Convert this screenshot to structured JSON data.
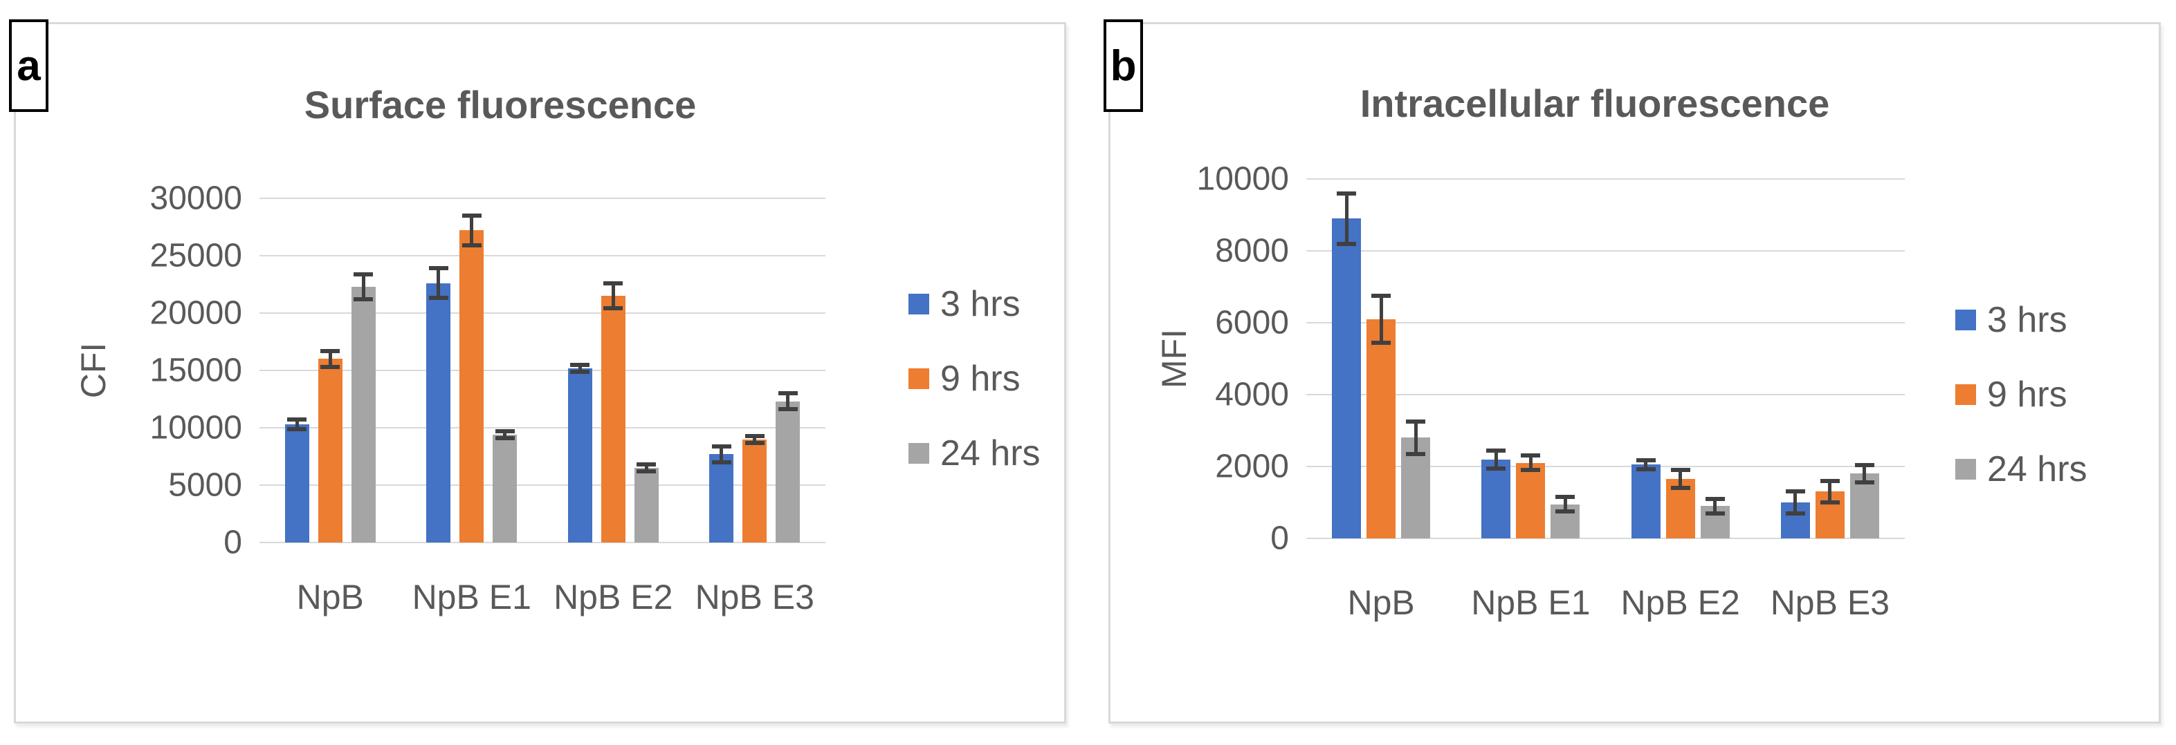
{
  "panels": [
    {
      "label": "a"
    },
    {
      "label": "b"
    }
  ],
  "colors": {
    "series_blue": "#4472C4",
    "series_orange": "#ED7D31",
    "series_gray": "#A5A5A5",
    "error_bar": "#404040",
    "gridline": "#D9D9D9",
    "text": "#595959",
    "panel_border": "#D9D9D9",
    "panel_label_border": "#000000"
  },
  "chart_data": [
    {
      "type": "bar",
      "panel": "a",
      "title": "Surface fluorescence",
      "ylabel": "CFI",
      "xlabel": "",
      "categories": [
        "NpB",
        "NpB E1",
        "NpB E2",
        "NpB E3"
      ],
      "series": [
        {
          "name": "3 hrs",
          "color": "#4472C4",
          "values": [
            10300,
            22600,
            15200,
            7700
          ],
          "errors": [
            400,
            1300,
            300,
            700
          ]
        },
        {
          "name": "9 hrs",
          "color": "#ED7D31",
          "values": [
            16000,
            27200,
            21500,
            9000
          ],
          "errors": [
            700,
            1300,
            1100,
            300
          ]
        },
        {
          "name": "24 hrs",
          "color": "#A5A5A5",
          "values": [
            22300,
            9400,
            6500,
            12300
          ],
          "errors": [
            1100,
            300,
            300,
            700
          ]
        }
      ],
      "ylim": [
        0,
        30000
      ],
      "ytick_step": 5000,
      "yticks": [
        0,
        5000,
        10000,
        15000,
        20000,
        25000,
        30000
      ],
      "grid": true,
      "error_bars": true,
      "legend_position": "right"
    },
    {
      "type": "bar",
      "panel": "b",
      "title": "Intracellular fluorescence",
      "ylabel": "MFI",
      "xlabel": "",
      "categories": [
        "NpB",
        "NpB E1",
        "NpB E2",
        "NpB E3"
      ],
      "series": [
        {
          "name": "3 hrs",
          "color": "#4472C4",
          "values": [
            8900,
            2200,
            2050,
            1000
          ],
          "errors": [
            700,
            250,
            120,
            300
          ]
        },
        {
          "name": "9 hrs",
          "color": "#ED7D31",
          "values": [
            6100,
            2100,
            1650,
            1300
          ],
          "errors": [
            650,
            200,
            250,
            300
          ]
        },
        {
          "name": "24 hrs",
          "color": "#A5A5A5",
          "values": [
            2800,
            950,
            900,
            1800
          ],
          "errors": [
            450,
            200,
            200,
            240
          ]
        }
      ],
      "ylim": [
        0,
        10000
      ],
      "ytick_step": 2000,
      "yticks": [
        0,
        2000,
        4000,
        6000,
        8000,
        10000
      ],
      "grid": true,
      "error_bars": true,
      "legend_position": "right"
    }
  ]
}
